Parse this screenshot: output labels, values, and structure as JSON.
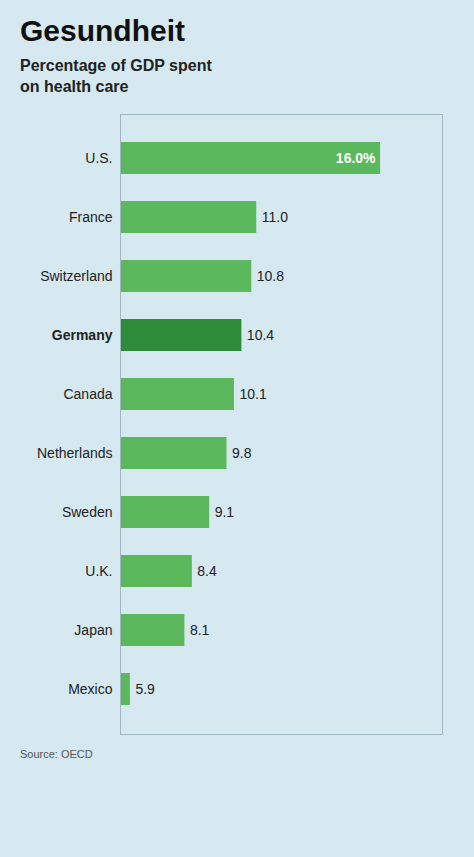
{
  "chart_data": {
    "type": "bar",
    "orientation": "horizontal",
    "title": "Gesundheit",
    "subtitle": "Percentage of GDP spent\non health care",
    "source": "Source: OECD",
    "categories": [
      "U.S.",
      "France",
      "Switzerland",
      "Germany",
      "Canada",
      "Netherlands",
      "Sweden",
      "U.K.",
      "Japan",
      "Mexico"
    ],
    "values": [
      16.0,
      11.0,
      10.8,
      10.4,
      10.1,
      9.8,
      9.1,
      8.4,
      8.1,
      5.9
    ],
    "value_labels": [
      "16.0%",
      "11.0",
      "10.8",
      "10.4",
      "10.1",
      "9.8",
      "9.1",
      "8.4",
      "8.1",
      "5.9"
    ],
    "colors": [
      "#5cb85c",
      "#5cb85c",
      "#5cb85c",
      "#2e8b3a",
      "#5cb85c",
      "#5cb85c",
      "#5cb85c",
      "#5cb85c",
      "#5cb85c",
      "#5cb85c"
    ],
    "xlim": [
      5.5,
      18.5
    ],
    "data_labels": true,
    "tick_labels": "y",
    "grid": false
  }
}
